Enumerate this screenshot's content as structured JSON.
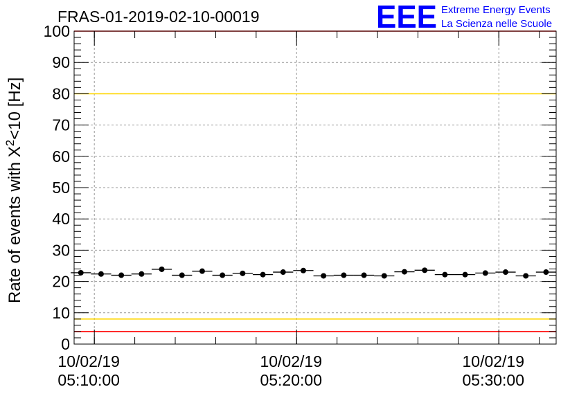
{
  "title": "FRAS-01-2019-02-10-00019",
  "logo": {
    "text": "EEE",
    "line1": "Extreme Energy Events",
    "line2": "La Scienza nelle Scuole",
    "color": "#0000ff"
  },
  "chart_data": {
    "type": "scatter",
    "title": "FRAS-01-2019-02-10-00019",
    "ylabel_main": "Rate of events with X",
    "ylabel_sup": "2",
    "ylabel_rest": "<10 [Hz]",
    "xlabel": "",
    "ylim": [
      0,
      100
    ],
    "xlim": [
      "05:09:00",
      "05:32:50"
    ],
    "y_ticks": [
      0,
      10,
      20,
      30,
      40,
      50,
      60,
      70,
      80,
      90,
      100
    ],
    "x_ticks": [
      {
        "time": "05:10:00",
        "date": "10/02/19"
      },
      {
        "time": "05:20:00",
        "date": "10/02/19"
      },
      {
        "time": "05:30:00",
        "date": "10/02/19"
      }
    ],
    "grid": true,
    "reference_lines": [
      {
        "y": 80,
        "color": "#ffd700"
      },
      {
        "y": 8,
        "color": "#ffd700"
      },
      {
        "y": 4,
        "color": "#ff0000"
      },
      {
        "y": 100,
        "color": "#ff0000"
      }
    ],
    "point_color": "#000000",
    "series": [
      {
        "x": [
          "05:09:20",
          "05:10:20",
          "05:11:20",
          "05:12:20",
          "05:13:20",
          "05:14:20",
          "05:15:20",
          "05:16:20",
          "05:17:20",
          "05:18:20",
          "05:19:20",
          "05:20:20",
          "05:21:20",
          "05:22:20",
          "05:23:20",
          "05:24:20",
          "05:25:20",
          "05:26:20",
          "05:27:20",
          "05:28:20",
          "05:29:20",
          "05:30:20",
          "05:31:20",
          "05:32:20"
        ],
        "y": [
          22.8,
          22.4,
          22.0,
          22.4,
          23.9,
          22.0,
          23.3,
          22.0,
          22.6,
          22.2,
          23.0,
          23.5,
          21.8,
          22.0,
          22.0,
          21.8,
          23.1,
          23.6,
          22.2,
          22.2,
          22.7,
          23.0,
          21.8,
          23.0
        ]
      }
    ]
  }
}
